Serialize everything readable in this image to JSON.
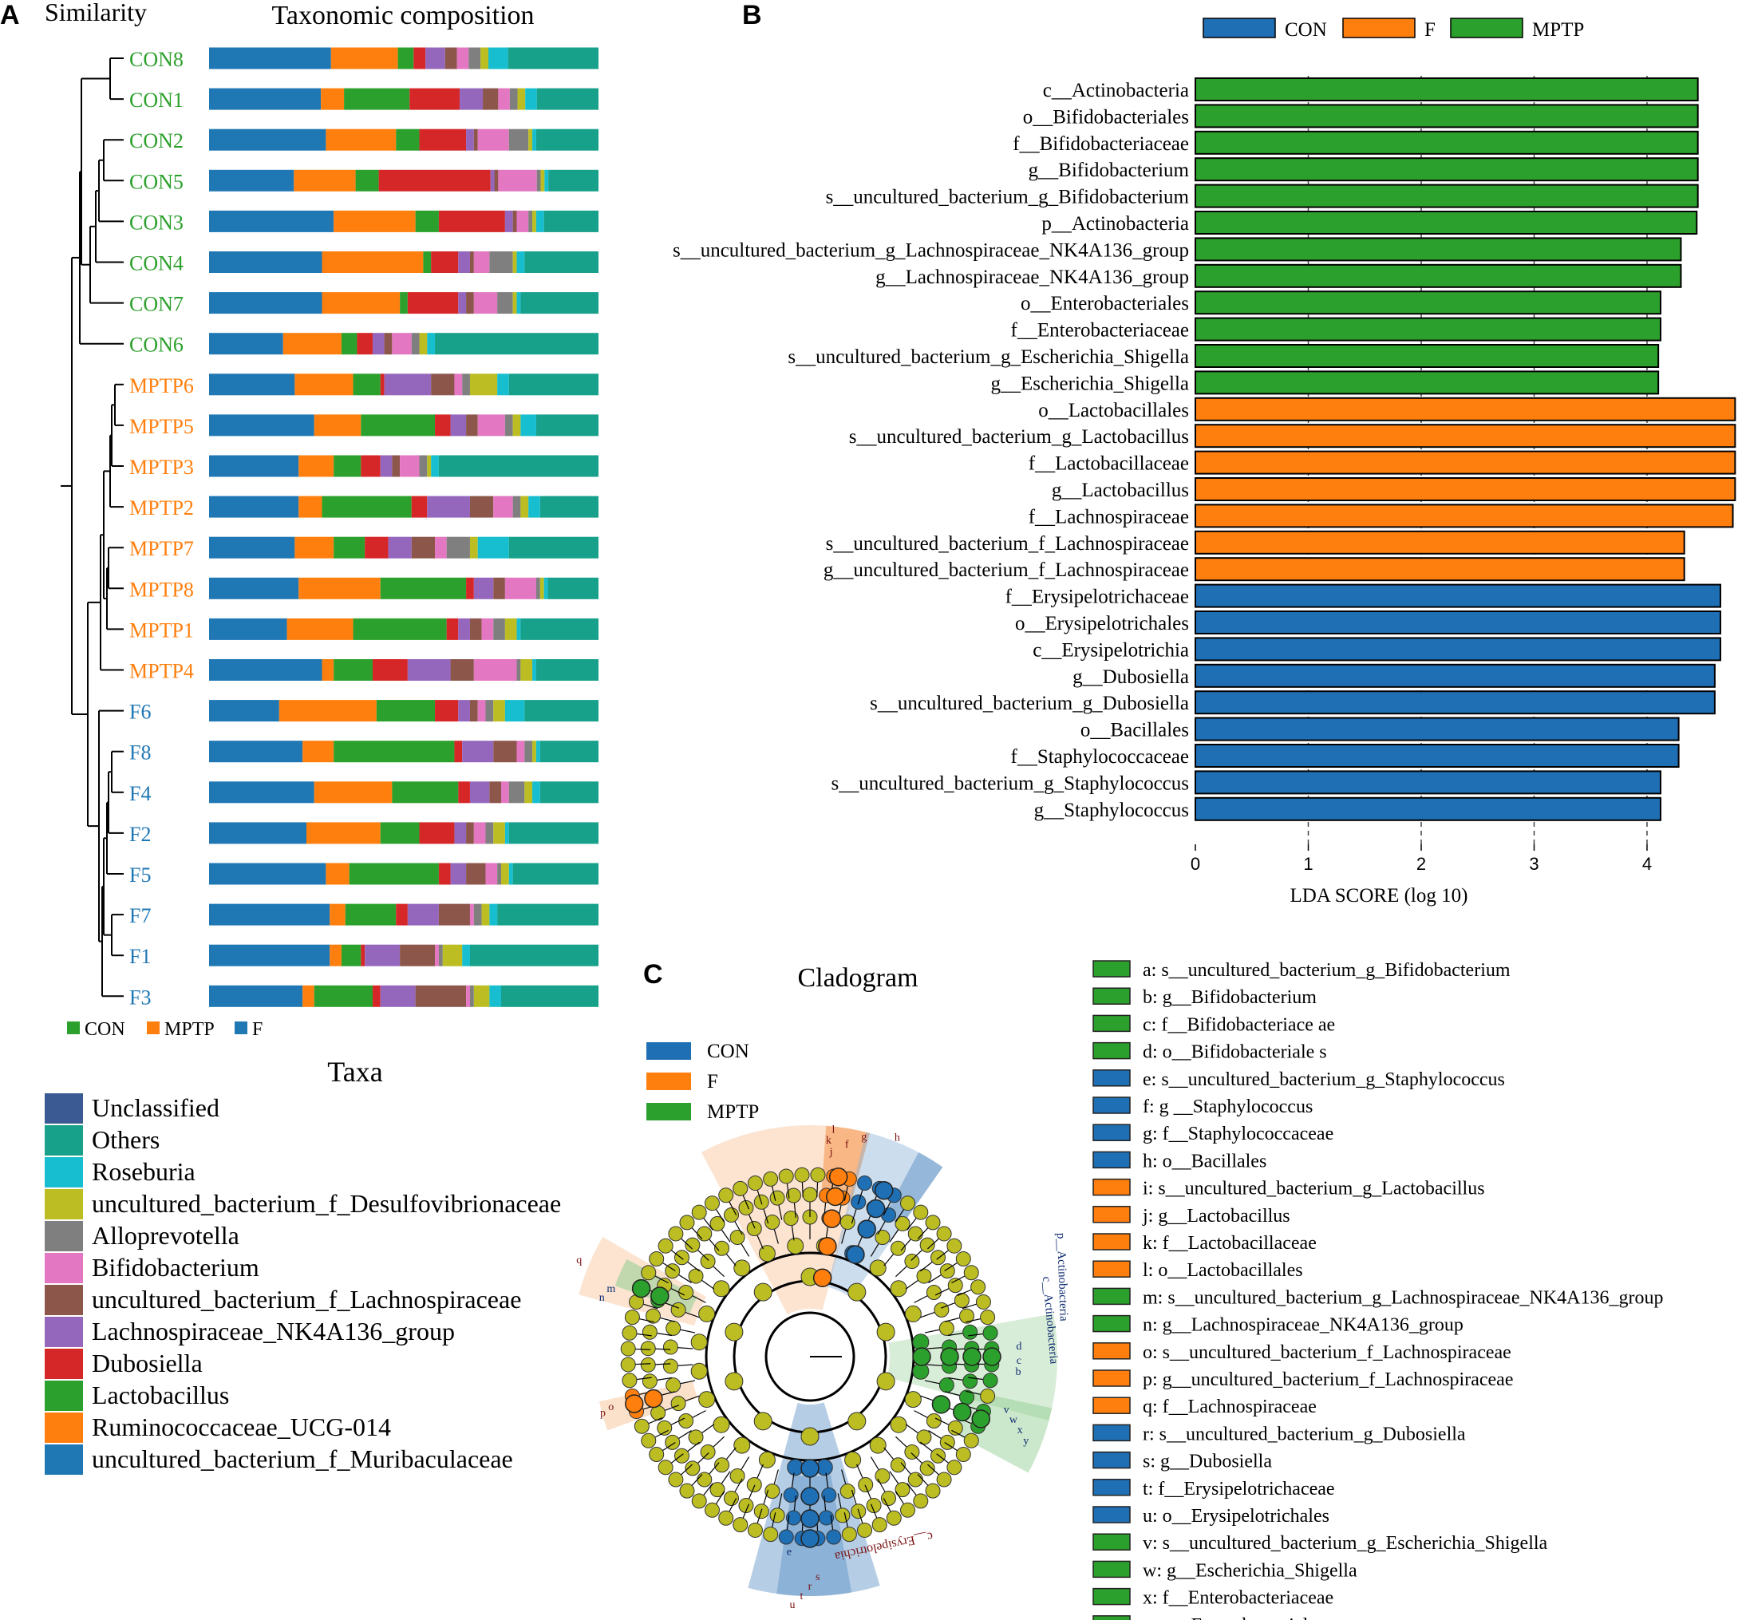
{
  "colors": {
    "CON": "#1f6fb4",
    "F": "#ff7f0e",
    "MPTP": "#2ca02c",
    "node": "#bcbd22",
    "grey": "#555555"
  },
  "panelA": {
    "letter": "A",
    "similarity_label": "Similarity",
    "title": "Taxonomic composition",
    "group_legend": [
      {
        "label": "CON",
        "color": "#2ca02c"
      },
      {
        "label": "MPTP",
        "color": "#ff7f0e"
      },
      {
        "label": "F",
        "color": "#1f77b4"
      }
    ],
    "taxa_title": "Taxa",
    "taxa": [
      {
        "name": "Unclassified",
        "color": "#3b5a93"
      },
      {
        "name": "Others",
        "color": "#17a08a"
      },
      {
        "name": "Roseburia",
        "color": "#17becf"
      },
      {
        "name": "uncultured_bacterium_f_Desulfovibrionaceae",
        "color": "#bcbd22"
      },
      {
        "name": "Alloprevotella",
        "color": "#7f7f7f"
      },
      {
        "name": "Bifidobacterium",
        "color": "#e377c2"
      },
      {
        "name": "uncultured_bacterium_f_Lachnospiraceae",
        "color": "#8c564b"
      },
      {
        "name": "Lachnospiraceae_NK4A136_group",
        "color": "#9467bd"
      },
      {
        "name": "Dubosiella",
        "color": "#d62728"
      },
      {
        "name": "Lactobacillus",
        "color": "#2ca02c"
      },
      {
        "name": "Ruminococcaceae_UCG-014",
        "color": "#ff7f0e"
      },
      {
        "name": "uncultured_bacterium_f_Muribaculaceae",
        "color": "#1f77b4"
      }
    ]
  },
  "chart_data": [
    {
      "type": "bar",
      "stacked": true,
      "title": "Taxonomic composition",
      "orientation": "horizontal",
      "component_order": [
        "uncultured_bacterium_f_Muribaculaceae",
        "Ruminococcaceae_UCG-014",
        "Lactobacillus",
        "Dubosiella",
        "Lachnospiraceae_NK4A136_group",
        "uncultured_bacterium_f_Lachnospiraceae",
        "Bifidobacterium",
        "Alloprevotella",
        "uncultured_bacterium_f_Desulfovibrionaceae",
        "Roseburia",
        "Others"
      ],
      "samples": [
        {
          "name": "CON8",
          "group": "CON",
          "values": [
            31,
            17,
            4,
            3,
            5,
            3,
            3,
            3,
            2,
            5,
            23
          ]
        },
        {
          "name": "CON1",
          "group": "CON",
          "values": [
            29,
            6,
            17,
            13,
            6,
            4,
            3,
            2,
            2,
            3,
            16
          ]
        },
        {
          "name": "CON2",
          "group": "CON",
          "values": [
            30,
            18,
            6,
            12,
            2,
            1,
            8,
            5,
            1,
            1,
            16
          ]
        },
        {
          "name": "CON5",
          "group": "CON",
          "values": [
            22,
            16,
            6,
            29,
            1,
            1,
            10,
            1,
            1,
            1,
            13
          ]
        },
        {
          "name": "CON3",
          "group": "CON",
          "values": [
            32,
            21,
            6,
            17,
            2,
            1,
            3,
            1,
            1,
            2,
            14
          ]
        },
        {
          "name": "CON4",
          "group": "CON",
          "values": [
            29,
            26,
            2,
            7,
            3,
            1,
            4,
            6,
            1,
            2,
            19
          ]
        },
        {
          "name": "CON7",
          "group": "CON",
          "values": [
            29,
            20,
            2,
            13,
            2,
            2,
            6,
            4,
            1,
            1,
            20
          ]
        },
        {
          "name": "CON6",
          "group": "CON",
          "values": [
            19,
            15,
            4,
            4,
            3,
            2,
            5,
            2,
            2,
            2,
            42
          ]
        },
        {
          "name": "MPTP6",
          "group": "MPTP",
          "values": [
            22,
            15,
            7,
            1,
            12,
            6,
            2,
            2,
            7,
            3,
            23
          ]
        },
        {
          "name": "MPTP5",
          "group": "MPTP",
          "values": [
            27,
            12,
            19,
            4,
            4,
            3,
            7,
            2,
            2,
            4,
            16
          ]
        },
        {
          "name": "MPTP3",
          "group": "MPTP",
          "values": [
            23,
            9,
            7,
            5,
            3,
            2,
            5,
            2,
            1,
            2,
            41
          ]
        },
        {
          "name": "MPTP2",
          "group": "MPTP",
          "values": [
            23,
            6,
            23,
            4,
            11,
            6,
            5,
            2,
            2,
            3,
            15
          ]
        },
        {
          "name": "MPTP7",
          "group": "MPTP",
          "values": [
            22,
            10,
            8,
            6,
            6,
            6,
            3,
            6,
            2,
            8,
            23
          ]
        },
        {
          "name": "MPTP8",
          "group": "MPTP",
          "values": [
            23,
            21,
            22,
            2,
            5,
            3,
            8,
            1,
            1,
            1,
            13
          ]
        },
        {
          "name": "MPTP1",
          "group": "MPTP",
          "values": [
            20,
            17,
            24,
            3,
            3,
            3,
            3,
            3,
            3,
            1,
            20
          ]
        },
        {
          "name": "MPTP4",
          "group": "MPTP",
          "values": [
            29,
            3,
            10,
            9,
            11,
            6,
            11,
            1,
            3,
            1,
            16
          ]
        },
        {
          "name": "F6",
          "group": "F",
          "values": [
            18,
            25,
            15,
            6,
            3,
            2,
            2,
            2,
            3,
            5,
            19
          ]
        },
        {
          "name": "F8",
          "group": "F",
          "values": [
            24,
            8,
            31,
            2,
            8,
            6,
            2,
            2,
            1,
            1,
            15
          ]
        },
        {
          "name": "F4",
          "group": "F",
          "values": [
            27,
            20,
            17,
            3,
            5,
            3,
            2,
            4,
            2,
            2,
            15
          ]
        },
        {
          "name": "F2",
          "group": "F",
          "values": [
            25,
            19,
            10,
            9,
            3,
            2,
            3,
            2,
            3,
            1,
            23
          ]
        },
        {
          "name": "F5",
          "group": "F",
          "values": [
            30,
            6,
            23,
            3,
            4,
            5,
            3,
            1,
            2,
            1,
            22
          ]
        },
        {
          "name": "F7",
          "group": "F",
          "values": [
            31,
            4,
            13,
            3,
            8,
            8,
            1,
            2,
            2,
            2,
            26
          ]
        },
        {
          "name": "F1",
          "group": "F",
          "values": [
            31,
            3,
            5,
            1,
            9,
            9,
            1,
            1,
            5,
            2,
            33
          ]
        },
        {
          "name": "F3",
          "group": "F",
          "values": [
            24,
            3,
            15,
            2,
            9,
            13,
            1,
            1,
            4,
            3,
            25
          ]
        }
      ]
    },
    {
      "type": "bar",
      "orientation": "horizontal",
      "xlabel": "LDA SCORE (log 10)",
      "xlim": [
        0,
        4.8
      ],
      "xticks": [
        "0",
        "1",
        "2",
        "3",
        "4"
      ],
      "legend": [
        {
          "label": "CON",
          "color": "#1f6fb4"
        },
        {
          "label": "F",
          "color": "#ff7f0e"
        },
        {
          "label": "MPTP",
          "color": "#2ca02c"
        }
      ],
      "bars": [
        {
          "label": "c__Actinobacteria",
          "group": "MPTP",
          "value": 4.45
        },
        {
          "label": "o__Bifidobacteriales",
          "group": "MPTP",
          "value": 4.45
        },
        {
          "label": "f__Bifidobacteriaceae",
          "group": "MPTP",
          "value": 4.45
        },
        {
          "label": "g__Bifidobacterium",
          "group": "MPTP",
          "value": 4.45
        },
        {
          "label": "s__uncultured_bacterium_g_Bifidobacterium",
          "group": "MPTP",
          "value": 4.45
        },
        {
          "label": "p__Actinobacteria",
          "group": "MPTP",
          "value": 4.44
        },
        {
          "label": "s__uncultured_bacterium_g_Lachnospiraceae_NK4A136_group",
          "group": "MPTP",
          "value": 4.3
        },
        {
          "label": "g__Lachnospiraceae_NK4A136_group",
          "group": "MPTP",
          "value": 4.3
        },
        {
          "label": "o__Enterobacteriales",
          "group": "MPTP",
          "value": 4.12
        },
        {
          "label": "f__Enterobacteriaceae",
          "group": "MPTP",
          "value": 4.12
        },
        {
          "label": "s__uncultured_bacterium_g_Escherichia_Shigella",
          "group": "MPTP",
          "value": 4.1
        },
        {
          "label": "g__Escherichia_Shigella",
          "group": "MPTP",
          "value": 4.1
        },
        {
          "label": "o__Lactobacillales",
          "group": "F",
          "value": 4.78
        },
        {
          "label": "s__uncultured_bacterium_g_Lactobacillus",
          "group": "F",
          "value": 4.78
        },
        {
          "label": "f__Lactobacillaceae",
          "group": "F",
          "value": 4.78
        },
        {
          "label": "g__Lactobacillus",
          "group": "F",
          "value": 4.78
        },
        {
          "label": "f__Lachnospiraceae",
          "group": "F",
          "value": 4.76
        },
        {
          "label": "s__uncultured_bacterium_f_Lachnospiraceae",
          "group": "F",
          "value": 4.33
        },
        {
          "label": "g__uncultured_bacterium_f_Lachnospiraceae",
          "group": "F",
          "value": 4.33
        },
        {
          "label": "f__Erysipelotrichaceae",
          "group": "CON",
          "value": 4.65
        },
        {
          "label": "o__Erysipelotrichales",
          "group": "CON",
          "value": 4.65
        },
        {
          "label": "c__Erysipelotrichia",
          "group": "CON",
          "value": 4.65
        },
        {
          "label": "g__Dubosiella",
          "group": "CON",
          "value": 4.6
        },
        {
          "label": "s__uncultured_bacterium_g_Dubosiella",
          "group": "CON",
          "value": 4.6
        },
        {
          "label": "o__Bacillales",
          "group": "CON",
          "value": 4.28
        },
        {
          "label": "f__Staphylococcaceae",
          "group": "CON",
          "value": 4.28
        },
        {
          "label": "s__uncultured_bacterium_g_Staphylococcus",
          "group": "CON",
          "value": 4.12
        },
        {
          "label": "g__Staphylococcus",
          "group": "CON",
          "value": 4.12
        }
      ]
    }
  ],
  "panelB": {
    "letter": "B"
  },
  "panelC": {
    "letter": "C",
    "title": "Cladogram",
    "legend": [
      {
        "label": "CON",
        "color": "#1f6fb4"
      },
      {
        "label": "F",
        "color": "#ff7f0e"
      },
      {
        "label": "MPTP",
        "color": "#2ca02c"
      }
    ],
    "ring_labels": [
      "l",
      "k",
      "j",
      "f",
      "g",
      "h",
      "n",
      "m",
      "q",
      "p",
      "o",
      "d",
      "c",
      "b",
      "y",
      "x",
      "w",
      "v",
      "s",
      "r",
      "t",
      "u",
      "e"
    ],
    "outer_labels": {
      "actino1": "p__Actinobacteria",
      "actino2": "c__Actinobacteria",
      "erysip": "c__Erysipelotrichia"
    },
    "key": [
      {
        "text": "a: s__uncultured_bacterium_g_Bifidobacterium",
        "group": "MPTP"
      },
      {
        "text": "b: g__Bifidobacterium",
        "group": "MPTP"
      },
      {
        "text": "c: f__Bifidobacteriace ae",
        "group": "MPTP"
      },
      {
        "text": "d: o__Bifidobacteriale s",
        "group": "MPTP"
      },
      {
        "text": "e: s__uncultured_bacterium_g_Staphylococcus",
        "group": "CON"
      },
      {
        "text": "f: g __Staphylococcus",
        "group": "CON"
      },
      {
        "text": "g: f__Staphylococcaceae",
        "group": "CON"
      },
      {
        "text": "h: o__Bacillales",
        "group": "CON"
      },
      {
        "text": "i: s__uncultured_bacterium_g_Lactobacillus",
        "group": "F"
      },
      {
        "text": "j: g__Lactobacillus",
        "group": "F"
      },
      {
        "text": "k: f__Lactobacillaceae",
        "group": "F"
      },
      {
        "text": "l: o__Lactobacillales",
        "group": "F"
      },
      {
        "text": "m: s__uncultured_bacterium_g_Lachnospiraceae_NK4A136_group",
        "group": "MPTP"
      },
      {
        "text": "n: g__Lachnospiraceae_NK4A136_group",
        "group": "MPTP"
      },
      {
        "text": "o: s__uncultured_bacterium_f_Lachnospiraceae",
        "group": "F"
      },
      {
        "text": "p: g__uncultured_bacterium_f_Lachnospiraceae",
        "group": "F"
      },
      {
        "text": "q: f__Lachnospiraceae",
        "group": "F"
      },
      {
        "text": "r: s__uncultured_bacterium_g_Dubosiella",
        "group": "CON"
      },
      {
        "text": "s: g__Dubosiella",
        "group": "CON"
      },
      {
        "text": "t: f__Erysipelotrichaceae",
        "group": "CON"
      },
      {
        "text": "u: o__Erysipelotrichales",
        "group": "CON"
      },
      {
        "text": "v: s__uncultured_bacterium_g_Escherichia_Shigella",
        "group": "MPTP"
      },
      {
        "text": "w: g__Escherichia_Shigella",
        "group": "MPTP"
      },
      {
        "text": "x: f__Enterobacteriaceae",
        "group": "MPTP"
      },
      {
        "text": "y: o__Enterobacteriales",
        "group": "MPTP"
      }
    ]
  }
}
